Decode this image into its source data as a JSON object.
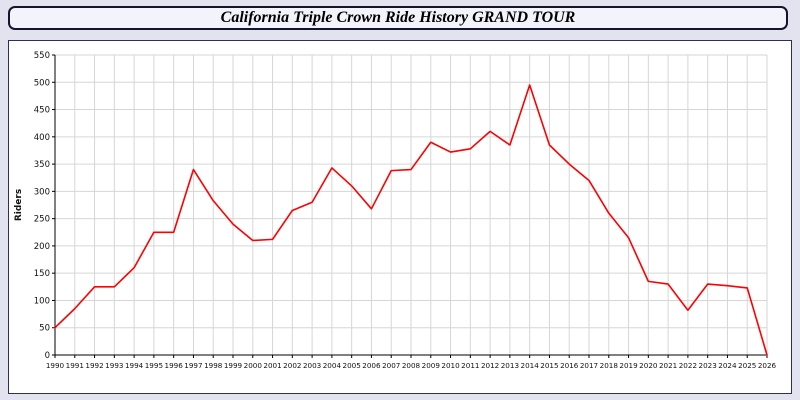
{
  "header": {
    "title": "California Triple Crown Ride History GRAND TOUR"
  },
  "chart_data": {
    "type": "line",
    "title": "California Triple Crown Ride History GRAND TOUR",
    "xlabel": "",
    "ylabel": "Riders",
    "ylim": [
      0,
      550
    ],
    "y_tick_step": 50,
    "grid": true,
    "legend_position": "none",
    "line_color": "#ff0000",
    "x": [
      1990,
      1991,
      1992,
      1993,
      1994,
      1995,
      1996,
      1997,
      1998,
      1999,
      2000,
      2001,
      2002,
      2003,
      2004,
      2005,
      2006,
      2007,
      2008,
      2009,
      2010,
      2011,
      2012,
      2013,
      2014,
      2015,
      2016,
      2017,
      2018,
      2019,
      2020,
      2021,
      2022,
      2023,
      2024,
      2025,
      2026
    ],
    "values": [
      50,
      85,
      125,
      125,
      160,
      225,
      225,
      340,
      283,
      240,
      210,
      212,
      265,
      280,
      343,
      310,
      268,
      338,
      340,
      390,
      372,
      378,
      410,
      385,
      495,
      385,
      350,
      320,
      260,
      215,
      135,
      130,
      82,
      130,
      127,
      123,
      0
    ]
  },
  "colors": {
    "page_background": "#e3e3f0",
    "panel_background": "#ffffff",
    "border": "#14142e",
    "grid": "#d6d6d6",
    "series": "#ff0000"
  }
}
